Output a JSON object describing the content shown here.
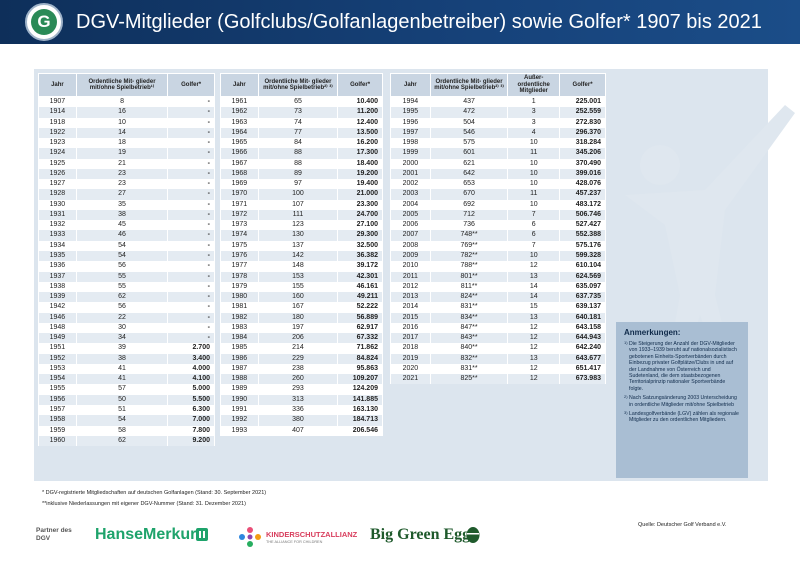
{
  "header": {
    "logo_letter": "G",
    "title": "DGV-Mitglieder (Golfclubs/Golfanlagenbetreiber) sowie Golfer* 1907 bis 2021"
  },
  "tables": [
    {
      "headers": [
        "Jahr",
        "Ordentliche Mit- glieder mit/ohne Spielbetrieb¹⁾",
        "Golfer*"
      ],
      "rows": [
        [
          "1907",
          "8",
          "-"
        ],
        [
          "1914",
          "16",
          "-"
        ],
        [
          "1918",
          "10",
          "-"
        ],
        [
          "1922",
          "14",
          "-"
        ],
        [
          "1923",
          "18",
          "-"
        ],
        [
          "1924",
          "19",
          "-"
        ],
        [
          "1925",
          "21",
          "-"
        ],
        [
          "1926",
          "23",
          "-"
        ],
        [
          "1927",
          "23",
          "-"
        ],
        [
          "1928",
          "27",
          "-"
        ],
        [
          "1930",
          "35",
          "-"
        ],
        [
          "1931",
          "38",
          "-"
        ],
        [
          "1932",
          "45",
          "-"
        ],
        [
          "1933",
          "46",
          "-"
        ],
        [
          "1934",
          "54",
          "-"
        ],
        [
          "1935",
          "54",
          "-"
        ],
        [
          "1936",
          "56",
          "-"
        ],
        [
          "1937",
          "55",
          "-"
        ],
        [
          "1938",
          "55",
          "-"
        ],
        [
          "1939",
          "62",
          "-"
        ],
        [
          "1942",
          "56",
          "-"
        ],
        [
          "1946",
          "22",
          "-"
        ],
        [
          "1948",
          "30",
          "-"
        ],
        [
          "1949",
          "34",
          "-"
        ],
        [
          "1951",
          "39",
          "2.700"
        ],
        [
          "1952",
          "38",
          "3.400"
        ],
        [
          "1953",
          "41",
          "4.000"
        ],
        [
          "1954",
          "41",
          "4.100"
        ],
        [
          "1955",
          "57",
          "5.000"
        ],
        [
          "1956",
          "50",
          "5.500"
        ],
        [
          "1957",
          "51",
          "6.300"
        ],
        [
          "1958",
          "54",
          "7.000"
        ],
        [
          "1959",
          "58",
          "7.800"
        ],
        [
          "1960",
          "62",
          "9.200"
        ]
      ]
    },
    {
      "headers": [
        "Jahr",
        "Ordentliche Mit- glieder mit/ohne Spielbetrieb²⁾ ³⁾",
        "Golfer*"
      ],
      "rows": [
        [
          "1961",
          "65",
          "10.400"
        ],
        [
          "1962",
          "73",
          "11.200"
        ],
        [
          "1963",
          "74",
          "12.400"
        ],
        [
          "1964",
          "77",
          "13.500"
        ],
        [
          "1965",
          "84",
          "16.200"
        ],
        [
          "1966",
          "88",
          "17.300"
        ],
        [
          "1967",
          "88",
          "18.400"
        ],
        [
          "1968",
          "89",
          "19.200"
        ],
        [
          "1969",
          "97",
          "19.400"
        ],
        [
          "1970",
          "100",
          "21.000"
        ],
        [
          "1971",
          "107",
          "23.300"
        ],
        [
          "1972",
          "111",
          "24.700"
        ],
        [
          "1973",
          "123",
          "27.100"
        ],
        [
          "1974",
          "130",
          "29.300"
        ],
        [
          "1975",
          "137",
          "32.500"
        ],
        [
          "1976",
          "142",
          "36.382"
        ],
        [
          "1977",
          "148",
          "39.172"
        ],
        [
          "1978",
          "153",
          "42.301"
        ],
        [
          "1979",
          "155",
          "46.161"
        ],
        [
          "1980",
          "160",
          "49.211"
        ],
        [
          "1981",
          "167",
          "52.222"
        ],
        [
          "1982",
          "180",
          "56.889"
        ],
        [
          "1983",
          "197",
          "62.917"
        ],
        [
          "1984",
          "206",
          "67.332"
        ],
        [
          "1985",
          "214",
          "71.862"
        ],
        [
          "1986",
          "229",
          "84.824"
        ],
        [
          "1987",
          "238",
          "95.863"
        ],
        [
          "1988",
          "260",
          "109.207"
        ],
        [
          "1989",
          "293",
          "124.209"
        ],
        [
          "1990",
          "313",
          "141.885"
        ],
        [
          "1991",
          "336",
          "163.130"
        ],
        [
          "1992",
          "380",
          "184.713"
        ],
        [
          "1993",
          "407",
          "206.546"
        ]
      ]
    },
    {
      "headers": [
        "Jahr",
        "Ordentliche Mit- glieder mit/ohne Spielbetrieb²⁾ ³⁾",
        "Außer- ordentliche Mitglieder",
        "Golfer*"
      ],
      "rows": [
        [
          "1994",
          "437",
          "1",
          "225.001"
        ],
        [
          "1995",
          "472",
          "3",
          "252.559"
        ],
        [
          "1996",
          "504",
          "3",
          "272.830"
        ],
        [
          "1997",
          "546",
          "4",
          "296.370"
        ],
        [
          "1998",
          "575",
          "10",
          "318.284"
        ],
        [
          "1999",
          "601",
          "11",
          "345.206"
        ],
        [
          "2000",
          "621",
          "10",
          "370.490"
        ],
        [
          "2001",
          "642",
          "10",
          "399.016"
        ],
        [
          "2002",
          "653",
          "10",
          "428.076"
        ],
        [
          "2003",
          "670",
          "11",
          "457.237"
        ],
        [
          "2004",
          "692",
          "10",
          "483.172"
        ],
        [
          "2005",
          "712",
          "7",
          "506.746"
        ],
        [
          "2006",
          "736",
          "6",
          "527.427"
        ],
        [
          "2007",
          "748**",
          "6",
          "552.388"
        ],
        [
          "2008",
          "769**",
          "7",
          "575.176"
        ],
        [
          "2009",
          "782**",
          "10",
          "599.328"
        ],
        [
          "2010",
          "788**",
          "12",
          "610.104"
        ],
        [
          "2011",
          "801**",
          "13",
          "624.569"
        ],
        [
          "2012",
          "811**",
          "14",
          "635.097"
        ],
        [
          "2013",
          "824**",
          "14",
          "637.735"
        ],
        [
          "2014",
          "831**",
          "15",
          "639.137"
        ],
        [
          "2015",
          "834**",
          "13",
          "640.181"
        ],
        [
          "2016",
          "847**",
          "12",
          "643.158"
        ],
        [
          "2017",
          "843**",
          "12",
          "644.943"
        ],
        [
          "2018",
          "840**",
          "12",
          "642.240"
        ],
        [
          "2019",
          "832**",
          "13",
          "643.677"
        ],
        [
          "2020",
          "831**",
          "12",
          "651.417"
        ],
        [
          "2021",
          "825**",
          "12",
          "673.983"
        ]
      ]
    }
  ],
  "notes": {
    "heading": "Anmerkungen:",
    "items": [
      {
        "n": "1)",
        "text": "Die Steigerung der Anzahl der DGV-Mitglieder von 1933–1939 beruht auf nationalsozialistisch gebotenen Einheits-Sportverbänden durch Einbezug privater Golfplätze/Clubs in und auf der Landnahme von Österreich und Sudetenland, die dem staatsbezogenen Territorialprinzip nationaler Sportverbände folgte."
      },
      {
        "n": "2)",
        "text": "Nach Satzungsänderung 2003 Unterscheidung in ordentliche Mitglieder mit/ohne Spielbetrieb"
      },
      {
        "n": "3)",
        "text": "Landesgolfverbände (LGV) zählen als regionale Mitglieder zu den ordentlichen Mitgliedern."
      }
    ]
  },
  "footnotes": {
    "f1": "* DGV-registrierte Mitgliedschaften auf deutschen Golfanlagen (Stand: 30. September 2021)",
    "f2": "**inklusive Niederlassungen mit eigener DGV-Nummer (Stand: 31. Dezember 2021)"
  },
  "source": "Quelle: Deutscher Golf Verband e.V.",
  "partners": {
    "label": "Partner des DGV",
    "hansemerkur": "HanseMerkur",
    "ksa_name": "KINDERSCHUTZALLIANZ",
    "ksa_tagline": "THE ALLIANCE FOR CHILDREN",
    "bge": "Big Green Egg"
  },
  "colors": {
    "header": "#16427a",
    "panel": "#dce5ee",
    "header_cell": "#c9d5e2",
    "notes": "#a9bed3",
    "hansemerkur": "#1ea36b",
    "bge": "#1f5a2c"
  }
}
